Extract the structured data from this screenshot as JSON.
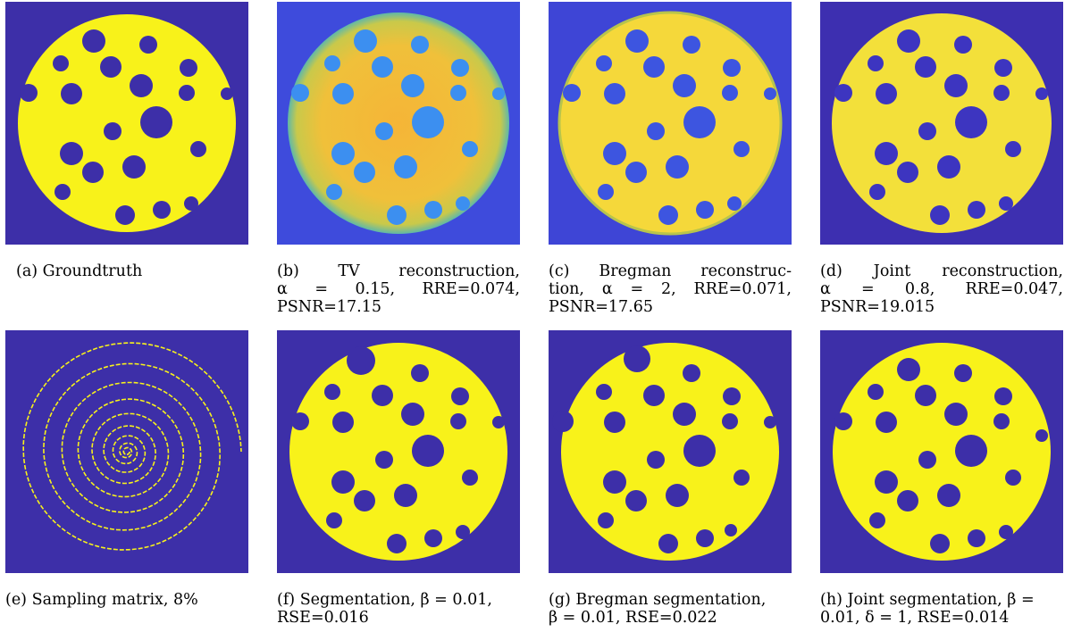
{
  "colors": {
    "background": "#3d2fa8",
    "foreground": "#f8f21a"
  },
  "panels": [
    {
      "caption": [
        "(a) Groundtruth"
      ]
    },
    {
      "caption": [
        "(b)     TV     reconstruction,",
        "α   =   0.15,   RRE=0.074,",
        "PSNR=17.15"
      ]
    },
    {
      "caption": [
        "(c)   Bregman   reconstruc-",
        "tion,  α  =  2,  RRE=0.071,",
        "PSNR=17.65"
      ]
    },
    {
      "caption": [
        "(d)   Joint   reconstruction,",
        "α   =   0.8,   RRE=0.047,",
        "PSNR=19.015"
      ]
    },
    {
      "caption": [
        "(e) Sampling matrix, 8%"
      ]
    },
    {
      "caption": [
        "(f) Segmentation, β = 0.01,",
        "RSE=0.016"
      ]
    },
    {
      "caption": [
        "(g) Bregman segmentation,",
        "β = 0.01, RSE=0.022"
      ]
    },
    {
      "caption": [
        "(h) Joint segmentation, β =",
        "0.01, δ = 1, RSE=0.014"
      ]
    }
  ]
}
